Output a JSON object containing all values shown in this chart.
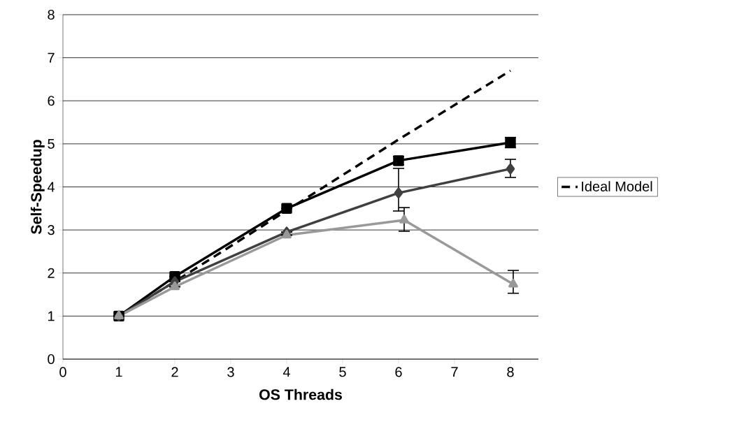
{
  "chart_data": {
    "type": "line",
    "xlabel": "OS Threads",
    "ylabel": "Self-Speedup",
    "x": [
      1,
      2,
      4,
      6,
      8
    ],
    "series": [
      {
        "name": "Ideal Model",
        "color": "#000000",
        "values": [
          1,
          1.8,
          3.45,
          5.1,
          6.7
        ],
        "marker": "none",
        "line_style": "dashed"
      },
      {
        "color": "#000000",
        "values": [
          1,
          1.92,
          3.5,
          4.61,
          5.03
        ],
        "marker": "square",
        "line_style": "solid",
        "errors": [
          null,
          null,
          null,
          0.1,
          0.12
        ]
      },
      {
        "color": "#404040",
        "values": [
          1,
          1.8,
          2.95,
          3.86,
          4.42
        ],
        "marker": "diamond",
        "line_style": "solid",
        "errors": [
          null,
          null,
          null,
          [
            3.44,
            4.43
          ],
          [
            4.22,
            4.64
          ]
        ]
      },
      {
        "color": "#999999",
        "x": [
          1,
          2,
          4,
          6.1,
          8.05
        ],
        "values": [
          1,
          1.68,
          2.88,
          3.23,
          1.74
        ],
        "marker": "triangle",
        "line_style": "solid",
        "errors": [
          null,
          null,
          null,
          [
            2.97,
            3.52
          ],
          [
            1.53,
            2.06
          ]
        ]
      }
    ],
    "xlim": [
      0,
      8.5
    ],
    "xticks": [
      0,
      1,
      2,
      3,
      4,
      5,
      6,
      7,
      8
    ],
    "ylim": [
      0,
      8
    ],
    "yticks": [
      0,
      1,
      2,
      3,
      4,
      5,
      6,
      7,
      8
    ],
    "grid": "y",
    "legend": "right"
  }
}
